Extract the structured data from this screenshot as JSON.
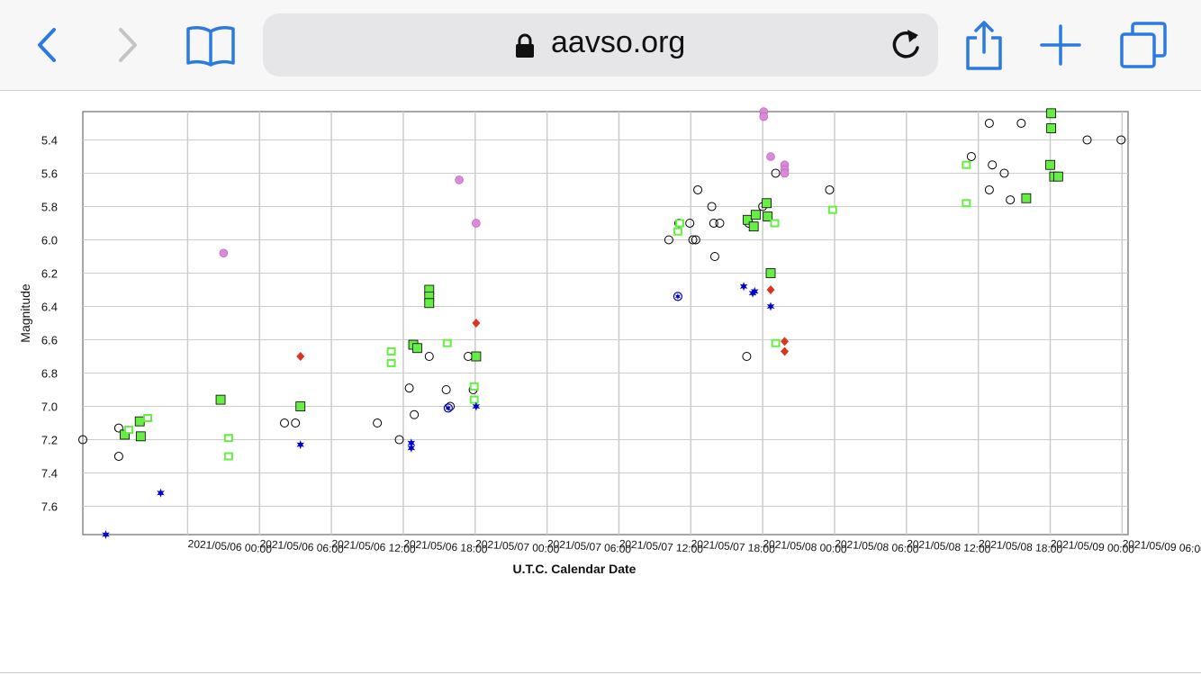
{
  "browser": {
    "url": "aavso.org",
    "icons": [
      "back-icon",
      "forward-icon",
      "bookmarks-icon",
      "lock-icon",
      "reload-icon",
      "share-icon",
      "new-tab-icon",
      "tabs-icon"
    ],
    "accent": "#2a7ae2",
    "disabled": "#c4c4c4"
  },
  "chart_data": {
    "type": "scatter",
    "xlabel": "U.T.C. Calendar Date",
    "ylabel": "Magnitude",
    "y_inverted": true,
    "ylim": [
      7.77,
      5.23
    ],
    "xlim": [
      "2021/05/05 15:15",
      "2021/05/09 06:30"
    ],
    "grid": true,
    "y_ticks": [
      5.4,
      5.6,
      5.8,
      6.0,
      6.2,
      6.4,
      6.6,
      6.8,
      7.0,
      7.2,
      7.4,
      7.6
    ],
    "y_tick_labels": [
      "5.4",
      "5.6",
      "5.8",
      "6.0",
      "6.2",
      "6.4",
      "6.6",
      "6.8",
      "7.0",
      "7.2",
      "7.4",
      "7.6"
    ],
    "x_ticks": [
      "2021/05/06 00:00",
      "2021/05/06 06:00",
      "2021/05/06 12:00",
      "2021/05/06 18:00",
      "2021/05/07 00:00",
      "2021/05/07 06:00",
      "2021/05/07 12:00",
      "2021/05/07 18:00",
      "2021/05/08 00:00",
      "2021/05/08 06:00",
      "2021/05/08 12:00",
      "2021/05/08 18:00",
      "2021/05/09 00:00",
      "2021/05/09 06:00"
    ],
    "series": [
      {
        "marker": "open-circle",
        "color": "#000000",
        "points": [
          [
            "2021/05/05 15:15",
            7.2
          ],
          [
            "2021/05/05 18:15",
            7.3
          ],
          [
            "2021/05/05 18:15",
            7.13
          ],
          [
            "2021/05/06 08:05",
            7.1
          ],
          [
            "2021/05/06 09:00",
            7.1
          ],
          [
            "2021/05/06 15:50",
            7.1
          ],
          [
            "2021/05/06 17:40",
            7.2
          ],
          [
            "2021/05/06 18:30",
            6.89
          ],
          [
            "2021/05/06 18:55",
            7.05
          ],
          [
            "2021/05/06 20:10",
            6.7
          ],
          [
            "2021/05/06 21:35",
            6.9
          ],
          [
            "2021/05/06 21:55",
            7.0
          ],
          [
            "2021/05/06 23:25",
            6.7
          ],
          [
            "2021/05/06 23:50",
            6.9
          ],
          [
            "2021/05/07 16:10",
            6.0
          ],
          [
            "2021/05/07 17:00",
            5.9
          ],
          [
            "2021/05/07 17:55",
            5.9
          ],
          [
            "2021/05/07 18:10",
            6.0
          ],
          [
            "2021/05/07 18:25",
            6.0
          ],
          [
            "2021/05/07 18:35",
            5.7
          ],
          [
            "2021/05/07 19:45",
            5.8
          ],
          [
            "2021/05/07 19:55",
            5.9
          ],
          [
            "2021/05/07 20:00",
            6.1
          ],
          [
            "2021/05/07 20:25",
            5.9
          ],
          [
            "2021/05/07 22:50",
            5.9
          ],
          [
            "2021/05/08 00:00",
            5.8
          ],
          [
            "2021/05/07 22:40",
            6.7
          ],
          [
            "2021/05/08 01:05",
            5.6
          ],
          [
            "2021/05/08 05:35",
            5.7
          ],
          [
            "2021/05/08 17:25",
            5.5
          ],
          [
            "2021/05/08 18:55",
            5.3
          ],
          [
            "2021/05/08 18:55",
            5.7
          ],
          [
            "2021/05/08 19:10",
            5.55
          ],
          [
            "2021/05/08 20:10",
            5.6
          ],
          [
            "2021/05/08 20:40",
            5.76
          ],
          [
            "2021/05/08 21:35",
            5.3
          ],
          [
            "2021/05/09 03:05",
            5.4
          ],
          [
            "2021/05/09 05:55",
            5.4
          ]
        ]
      },
      {
        "marker": "green-square",
        "color": "#66ee44",
        "points": [
          [
            "2021/05/05 18:45",
            7.17
          ],
          [
            "2021/05/05 20:00",
            7.09
          ],
          [
            "2021/05/05 20:05",
            7.18
          ],
          [
            "2021/05/06 02:45",
            6.96
          ],
          [
            "2021/05/06 09:25",
            7.0
          ],
          [
            "2021/05/06 18:50",
            6.63
          ],
          [
            "2021/05/06 19:10",
            6.65
          ],
          [
            "2021/05/06 20:10",
            6.3
          ],
          [
            "2021/05/06 20:10",
            6.34
          ],
          [
            "2021/05/06 20:10",
            6.38
          ],
          [
            "2021/05/07 00:05",
            6.7
          ],
          [
            "2021/05/07 22:45",
            5.88
          ],
          [
            "2021/05/07 23:15",
            5.92
          ],
          [
            "2021/05/07 23:25",
            5.85
          ],
          [
            "2021/05/08 00:20",
            5.78
          ],
          [
            "2021/05/08 00:25",
            5.86
          ],
          [
            "2021/05/08 00:40",
            6.2
          ],
          [
            "2021/05/08 22:00",
            5.75
          ],
          [
            "2021/05/09 00:00",
            5.55
          ],
          [
            "2021/05/09 00:05",
            5.33
          ],
          [
            "2021/05/09 00:05",
            5.24
          ],
          [
            "2021/05/09 00:20",
            5.62
          ],
          [
            "2021/05/09 00:40",
            5.62
          ]
        ]
      },
      {
        "marker": "small-square",
        "color": "#66ee44",
        "points": [
          [
            "2021/05/05 19:05",
            7.14
          ],
          [
            "2021/05/05 20:40",
            7.07
          ],
          [
            "2021/05/06 03:25",
            7.19
          ],
          [
            "2021/05/06 03:25",
            7.3
          ],
          [
            "2021/05/06 17:00",
            6.67
          ],
          [
            "2021/05/06 17:00",
            6.74
          ],
          [
            "2021/05/06 21:40",
            6.62
          ],
          [
            "2021/05/06 23:55",
            6.88
          ],
          [
            "2021/05/06 23:55",
            6.96
          ],
          [
            "2021/05/07 16:55",
            5.95
          ],
          [
            "2021/05/07 17:05",
            5.9
          ],
          [
            "2021/05/08 01:00",
            5.9
          ],
          [
            "2021/05/08 01:05",
            6.62
          ],
          [
            "2021/05/08 05:50",
            5.82
          ],
          [
            "2021/05/08 17:00",
            5.55
          ],
          [
            "2021/05/08 17:00",
            5.78
          ]
        ]
      },
      {
        "marker": "pink-circle",
        "color": "#dd88dd",
        "points": [
          [
            "2021/05/06 03:00",
            6.08
          ],
          [
            "2021/05/06 22:40",
            5.64
          ],
          [
            "2021/05/07 00:05",
            5.9
          ],
          [
            "2021/05/08 00:05",
            5.23
          ],
          [
            "2021/05/08 00:05",
            5.26
          ],
          [
            "2021/05/08 00:40",
            5.5
          ],
          [
            "2021/05/08 01:50",
            5.55
          ],
          [
            "2021/05/08 01:50",
            5.58
          ],
          [
            "2021/05/08 01:50",
            5.6
          ]
        ]
      },
      {
        "marker": "red-diamond",
        "color": "#dd3322",
        "points": [
          [
            "2021/05/06 09:25",
            6.7
          ],
          [
            "2021/05/07 00:05",
            6.5
          ],
          [
            "2021/05/08 00:40",
            6.3
          ],
          [
            "2021/05/08 01:50",
            6.61
          ],
          [
            "2021/05/08 01:50",
            6.67
          ]
        ]
      },
      {
        "marker": "blue-star",
        "color": "#0000cc",
        "points": [
          [
            "2021/05/05 17:10",
            7.77
          ],
          [
            "2021/05/05 21:45",
            7.52
          ],
          [
            "2021/05/06 09:25",
            7.23
          ],
          [
            "2021/05/06 18:40",
            7.22
          ],
          [
            "2021/05/06 18:40",
            7.25
          ],
          [
            "2021/05/07 00:05",
            7.0
          ],
          [
            "2021/05/07 22:25",
            6.28
          ],
          [
            "2021/05/07 23:10",
            6.32
          ],
          [
            "2021/05/07 23:20",
            6.31
          ],
          [
            "2021/05/08 00:40",
            6.4
          ]
        ]
      },
      {
        "marker": "blue-ring",
        "color": "#0000cc",
        "points": [
          [
            "2021/05/06 21:45",
            7.01
          ],
          [
            "2021/05/07 16:55",
            6.34
          ]
        ]
      }
    ]
  }
}
